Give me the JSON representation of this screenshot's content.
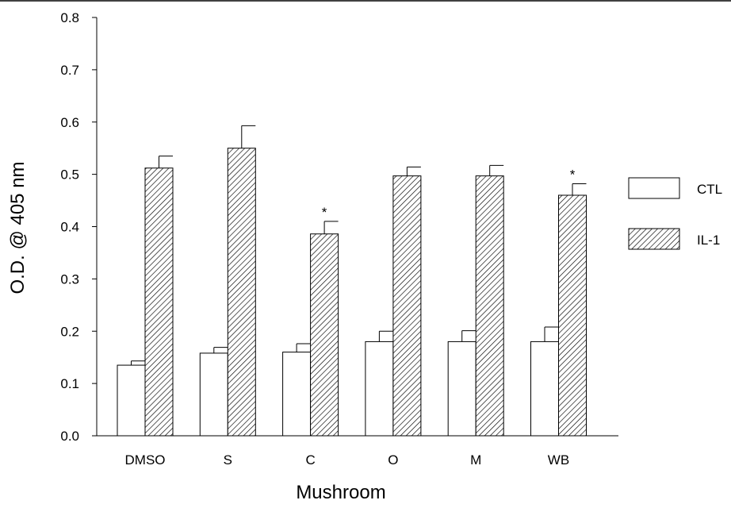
{
  "chart_data": {
    "type": "bar",
    "categories": [
      "DMSO",
      "S",
      "C",
      "O",
      "M",
      "WB"
    ],
    "series": [
      {
        "name": "CTL",
        "fill": "#ffffff",
        "pattern": "none",
        "values": [
          0.135,
          0.158,
          0.16,
          0.18,
          0.18,
          0.18
        ],
        "errors": [
          0.008,
          0.011,
          0.016,
          0.02,
          0.021,
          0.028
        ]
      },
      {
        "name": "IL-1",
        "fill": "hatched",
        "pattern": "diagonal-lines",
        "values": [
          0.512,
          0.55,
          0.386,
          0.497,
          0.497,
          0.46
        ],
        "errors": [
          0.023,
          0.043,
          0.024,
          0.017,
          0.02,
          0.022
        ]
      }
    ],
    "annotations": [
      {
        "category": "C",
        "series": "IL-1",
        "text": "*"
      },
      {
        "category": "WB",
        "series": "IL-1",
        "text": "*"
      }
    ],
    "xlabel": "Mushroom",
    "ylabel": "O.D. @ 405 nm",
    "ylim": [
      0,
      0.8
    ],
    "yticks": [
      "0.0",
      "0.1",
      "0.2",
      "0.3",
      "0.4",
      "0.5",
      "0.6",
      "0.7",
      "0.8"
    ],
    "grid": false,
    "legend": {
      "placement": "right",
      "entries": [
        "CTL",
        "IL-1"
      ]
    }
  }
}
